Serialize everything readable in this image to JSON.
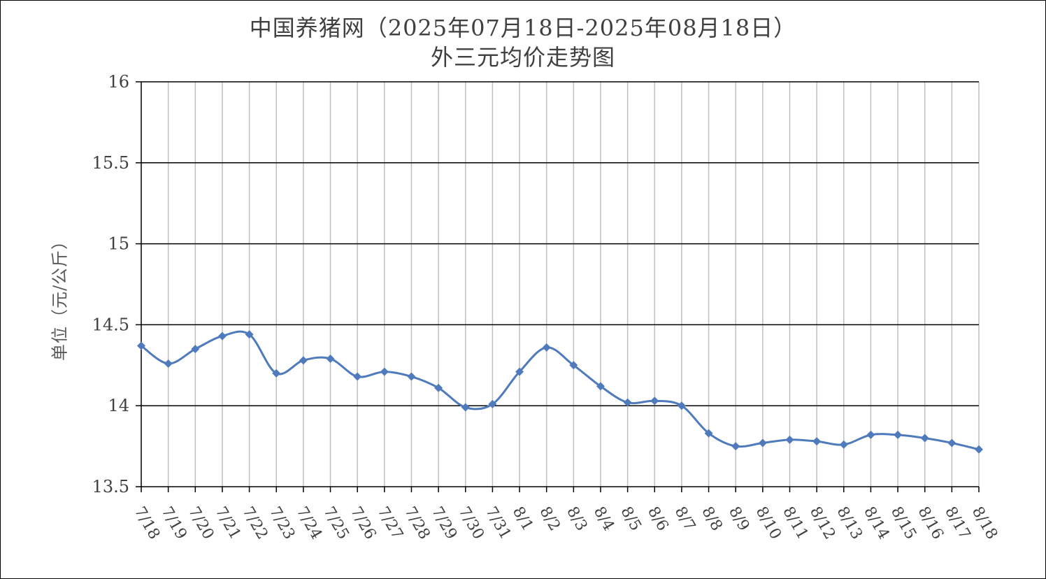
{
  "chart_data": {
    "type": "line",
    "title": "中国养猪网（2025年07月18日-2025年08月18日）",
    "subtitle": "外三元均价走势图",
    "xlabel": "",
    "ylabel": "单位（元/公斤）",
    "ylim": [
      13.5,
      16
    ],
    "yticks": [
      "16",
      "15.5",
      "15",
      "14.5",
      "14",
      "13.5"
    ],
    "ytick_values": [
      16,
      15.5,
      15,
      14.5,
      14,
      13.5
    ],
    "grid": true,
    "legend": "none",
    "line_color": "#4F7BBD",
    "categories": [
      "7/18",
      "7/19",
      "7/20",
      "7/21",
      "7/22",
      "7/23",
      "7/24",
      "7/25",
      "7/26",
      "7/27",
      "7/28",
      "7/29",
      "7/30",
      "7/31",
      "8/1",
      "8/2",
      "8/3",
      "8/4",
      "8/5",
      "8/6",
      "8/7",
      "8/8",
      "8/9",
      "8/10",
      "8/11",
      "8/12",
      "8/13",
      "8/14",
      "8/15",
      "8/16",
      "8/17",
      "8/18"
    ],
    "series": [
      {
        "values": [
          14.37,
          14.26,
          14.35,
          14.43,
          14.44,
          14.2,
          14.28,
          14.29,
          14.18,
          14.21,
          14.18,
          14.11,
          13.99,
          14.01,
          14.21,
          14.36,
          14.25,
          14.12,
          14.02,
          14.03,
          14.0,
          13.83,
          13.75,
          13.77,
          13.79,
          13.78,
          13.76,
          13.82,
          13.82,
          13.8,
          13.77,
          13.73
        ]
      }
    ]
  }
}
